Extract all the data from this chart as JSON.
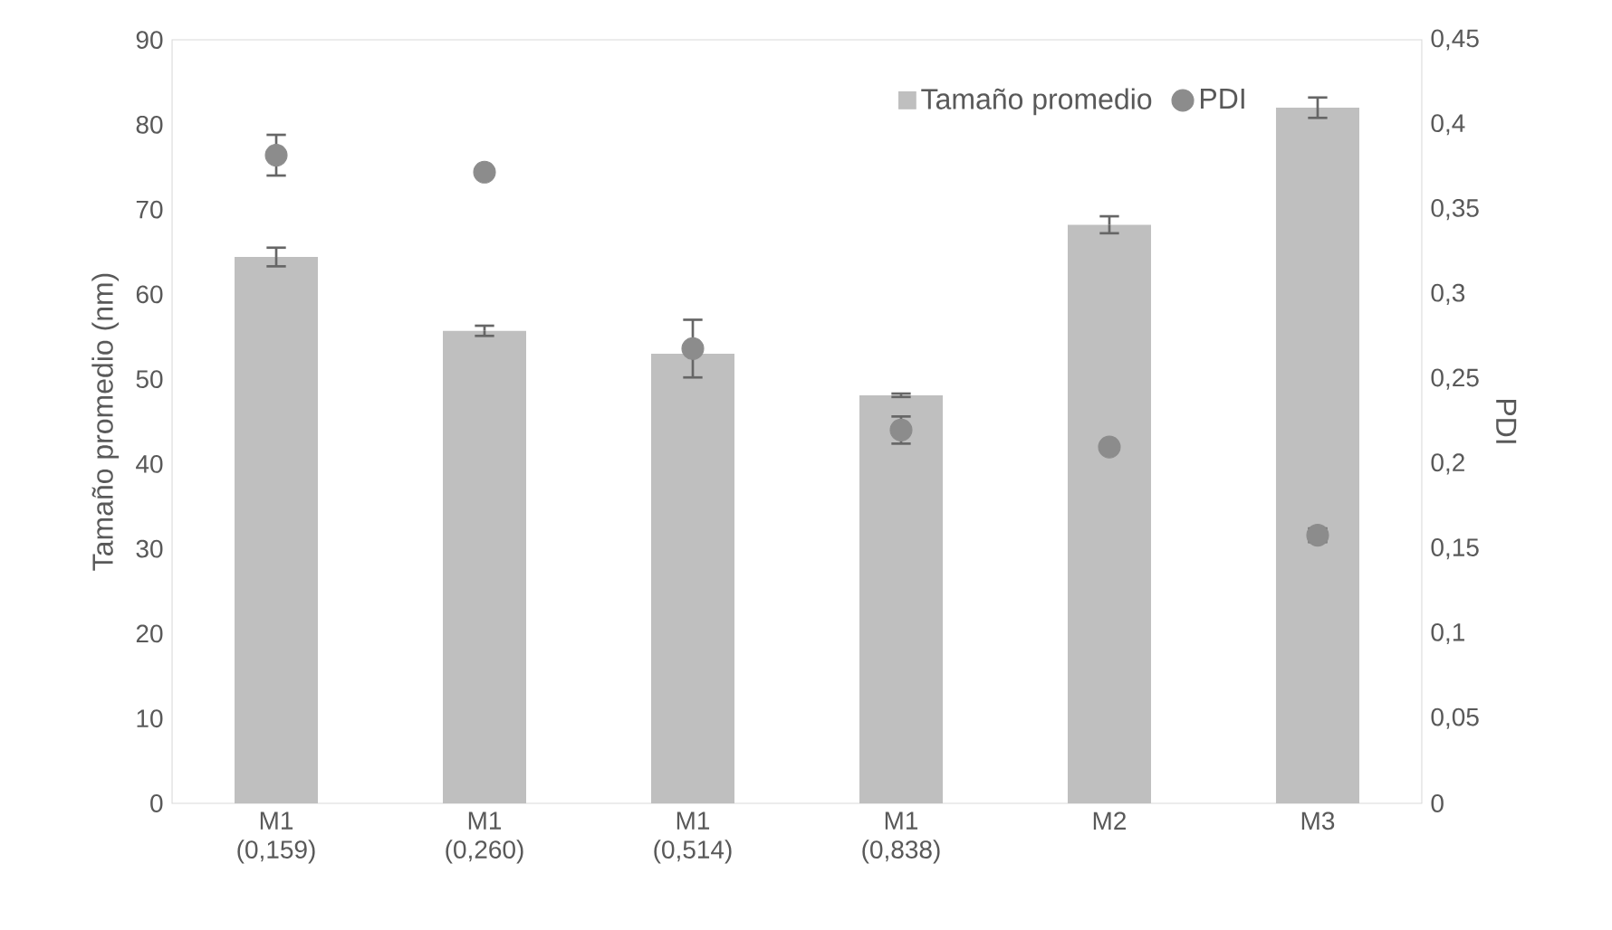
{
  "chart_data": {
    "type": "bar",
    "categories": [
      "M1 (0,159)",
      "M1 (0,260)",
      "M1 (0,514)",
      "M1 (0,838)",
      "M2",
      "M3"
    ],
    "ylabel": "Tamaño promedio (nm)",
    "y2label": "PDI",
    "ylim": [
      0,
      90
    ],
    "yticks": [
      0,
      10,
      20,
      30,
      40,
      50,
      60,
      70,
      80,
      90
    ],
    "y2lim": [
      0,
      0.45
    ],
    "y2ticks": [
      {
        "value": 0,
        "label": "0"
      },
      {
        "value": 0.05,
        "label": "0,05"
      },
      {
        "value": 0.1,
        "label": "0,1"
      },
      {
        "value": 0.15,
        "label": "0,15"
      },
      {
        "value": 0.2,
        "label": "0,2"
      },
      {
        "value": 0.25,
        "label": "0,25"
      },
      {
        "value": 0.3,
        "label": "0,3"
      },
      {
        "value": 0.35,
        "label": "0,35"
      },
      {
        "value": 0.4,
        "label": "0,4"
      },
      {
        "value": 0.45,
        "label": "0,45"
      }
    ],
    "legend": "top right",
    "grid": false,
    "series": [
      {
        "name": "Tamaño promedio",
        "color": "#bfbfbf",
        "values": [
          64.4,
          55.7,
          53.0,
          48.1,
          68.2,
          82.0
        ],
        "errors": [
          1.1,
          0.6,
          null,
          0.2,
          1.0,
          1.2
        ]
      },
      {
        "name": "PDI",
        "type": "scatter",
        "axis": "y2",
        "color": "#8c8c8c",
        "values": [
          0.382,
          0.372,
          0.268,
          0.22,
          0.21,
          0.158
        ],
        "errors": [
          0.012,
          null,
          0.017,
          0.008,
          null,
          0.004
        ]
      }
    ]
  }
}
